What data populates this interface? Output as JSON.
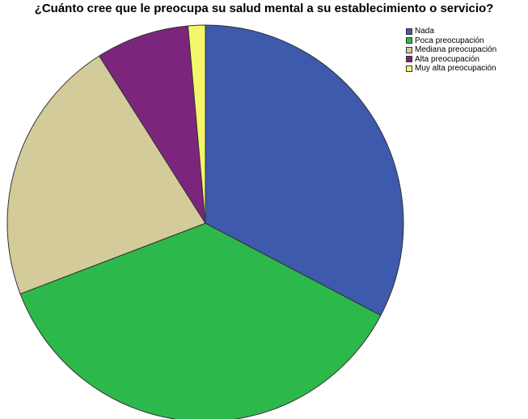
{
  "chart_data": {
    "type": "pie",
    "title": "¿Cuánto cree que le preocupa su salud mental a su establecimiento o servicio?",
    "legend_position": "top-right",
    "series": [
      {
        "name": "Nada",
        "value": 32.7,
        "color": "#3d5aac"
      },
      {
        "name": "Poca preocupación",
        "value": 36.5,
        "color": "#2db84c"
      },
      {
        "name": "Mediana preocupación",
        "value": 21.8,
        "color": "#d3cc9a"
      },
      {
        "name": "Alta preocupación",
        "value": 7.6,
        "color": "#7b267c"
      },
      {
        "name": "Muy alta preocupación",
        "value": 1.4,
        "color": "#f6f56a"
      }
    ]
  }
}
